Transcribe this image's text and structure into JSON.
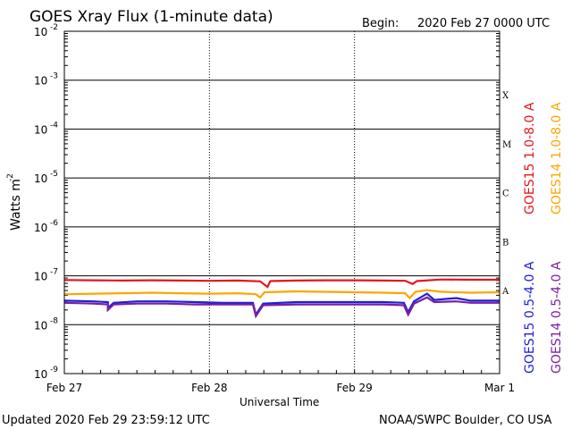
{
  "header": {
    "title": "GOES Xray Flux (1-minute data)",
    "begin_label": "Begin:",
    "begin_value": "2020 Feb 27 0000 UTC"
  },
  "footer": {
    "updated": "Updated 2020 Feb 29 23:59:12 UTC",
    "credit": "NOAA/SWPC Boulder, CO USA"
  },
  "chart_data": {
    "type": "line",
    "title": "GOES Xray Flux (1-minute data)",
    "xlabel": "Universal Time",
    "ylabel": "Watts m",
    "ylabel_superscript": "-2",
    "y_scale": "log",
    "ylim": [
      1e-09,
      0.01
    ],
    "y_ticks": [
      {
        "base": "10",
        "exp": "-2"
      },
      {
        "base": "10",
        "exp": "-3"
      },
      {
        "base": "10",
        "exp": "-4"
      },
      {
        "base": "10",
        "exp": "-5"
      },
      {
        "base": "10",
        "exp": "-6"
      },
      {
        "base": "10",
        "exp": "-7"
      },
      {
        "base": "10",
        "exp": "-8"
      },
      {
        "base": "10",
        "exp": "-9"
      }
    ],
    "x_ticks": [
      "Feb 27",
      "Feb 28",
      "Feb 29",
      "Mar 1"
    ],
    "x_range_days": [
      0,
      3
    ],
    "grid": true,
    "flare_classes": [
      "X",
      "M",
      "C",
      "B",
      "A"
    ],
    "series": [
      {
        "name": "GOES15 1.0-8.0 A",
        "color": "#e8141e",
        "points": [
          [
            0.0,
            8.2e-08
          ],
          [
            0.2,
            8.1e-08
          ],
          [
            0.4,
            8e-08
          ],
          [
            0.6,
            8.1e-08
          ],
          [
            0.8,
            8e-08
          ],
          [
            1.0,
            7.9e-08
          ],
          [
            1.2,
            8e-08
          ],
          [
            1.35,
            7.7e-08
          ],
          [
            1.4,
            5.9e-08
          ],
          [
            1.42,
            7.8e-08
          ],
          [
            1.6,
            8e-08
          ],
          [
            1.8,
            8.1e-08
          ],
          [
            2.0,
            8.1e-08
          ],
          [
            2.2,
            8e-08
          ],
          [
            2.35,
            7.9e-08
          ],
          [
            2.4,
            6.8e-08
          ],
          [
            2.43,
            7.8e-08
          ],
          [
            2.6,
            8.4e-08
          ],
          [
            2.8,
            8.3e-08
          ],
          [
            3.0,
            8.3e-08
          ]
        ]
      },
      {
        "name": "GOES14 1.0-8.0 A",
        "color": "#ffa500",
        "points": [
          [
            0.0,
            4.2e-08
          ],
          [
            0.2,
            4.3e-08
          ],
          [
            0.4,
            4.4e-08
          ],
          [
            0.6,
            4.5e-08
          ],
          [
            0.8,
            4.4e-08
          ],
          [
            1.0,
            4.3e-08
          ],
          [
            1.2,
            4.4e-08
          ],
          [
            1.32,
            4.2e-08
          ],
          [
            1.35,
            3.6e-08
          ],
          [
            1.38,
            4.6e-08
          ],
          [
            1.6,
            4.8e-08
          ],
          [
            1.8,
            4.7e-08
          ],
          [
            2.0,
            4.6e-08
          ],
          [
            2.2,
            4.5e-08
          ],
          [
            2.35,
            4.4e-08
          ],
          [
            2.38,
            3.5e-08
          ],
          [
            2.42,
            4.7e-08
          ],
          [
            2.5,
            5.1e-08
          ],
          [
            2.6,
            4.7e-08
          ],
          [
            2.8,
            4.5e-08
          ],
          [
            3.0,
            4.6e-08
          ]
        ]
      },
      {
        "name": "GOES15 0.5-4.0 A",
        "color": "#1e1edc",
        "points": [
          [
            0.0,
            3.1e-08
          ],
          [
            0.2,
            3e-08
          ],
          [
            0.3,
            2.9e-08
          ],
          [
            0.3,
            2.2e-08
          ],
          [
            0.34,
            2.8e-08
          ],
          [
            0.5,
            3e-08
          ],
          [
            0.7,
            3e-08
          ],
          [
            0.9,
            2.9e-08
          ],
          [
            1.1,
            2.8e-08
          ],
          [
            1.3,
            2.8e-08
          ],
          [
            1.32,
            1.6e-08
          ],
          [
            1.37,
            2.7e-08
          ],
          [
            1.6,
            2.9e-08
          ],
          [
            1.8,
            2.9e-08
          ],
          [
            2.0,
            2.9e-08
          ],
          [
            2.2,
            2.9e-08
          ],
          [
            2.34,
            2.8e-08
          ],
          [
            2.37,
            1.8e-08
          ],
          [
            2.41,
            3e-08
          ],
          [
            2.5,
            4.3e-08
          ],
          [
            2.55,
            3.2e-08
          ],
          [
            2.7,
            3.5e-08
          ],
          [
            2.8,
            3.1e-08
          ],
          [
            3.0,
            3.1e-08
          ]
        ]
      },
      {
        "name": "GOES14 0.5-4.0 A",
        "color": "#7b1fa2",
        "points": [
          [
            0.0,
            2.8e-08
          ],
          [
            0.2,
            2.7e-08
          ],
          [
            0.3,
            2.6e-08
          ],
          [
            0.3,
            2e-08
          ],
          [
            0.34,
            2.6e-08
          ],
          [
            0.5,
            2.7e-08
          ],
          [
            0.7,
            2.7e-08
          ],
          [
            0.9,
            2.6e-08
          ],
          [
            1.1,
            2.6e-08
          ],
          [
            1.3,
            2.6e-08
          ],
          [
            1.32,
            1.5e-08
          ],
          [
            1.37,
            2.5e-08
          ],
          [
            1.6,
            2.6e-08
          ],
          [
            1.8,
            2.6e-08
          ],
          [
            2.0,
            2.6e-08
          ],
          [
            2.2,
            2.6e-08
          ],
          [
            2.34,
            2.5e-08
          ],
          [
            2.37,
            1.6e-08
          ],
          [
            2.41,
            2.7e-08
          ],
          [
            2.5,
            3.6e-08
          ],
          [
            2.55,
            2.9e-08
          ],
          [
            2.7,
            3e-08
          ],
          [
            2.8,
            2.8e-08
          ],
          [
            3.0,
            2.8e-08
          ]
        ]
      }
    ]
  }
}
